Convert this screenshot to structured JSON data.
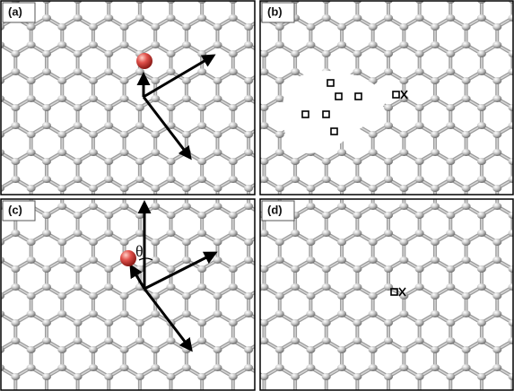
{
  "panels": [
    {
      "label": "(a)"
    },
    {
      "label": "(b)"
    },
    {
      "label": "(c)",
      "angle_label": "θ"
    },
    {
      "label": "(d)"
    }
  ]
}
